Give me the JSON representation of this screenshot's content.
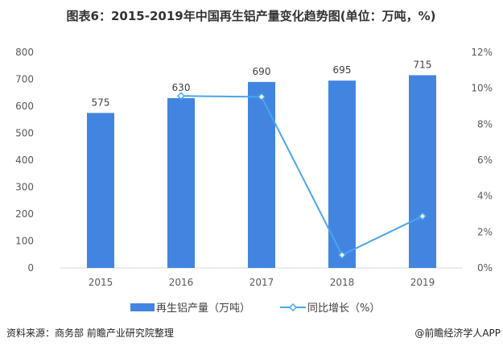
{
  "chart_data": {
    "type": "bar+line",
    "title": "图表6：2015-2019年中国再生铝产量变化趋势图(单位：万吨，%)",
    "categories": [
      "2015",
      "2016",
      "2017",
      "2018",
      "2019"
    ],
    "series": [
      {
        "name": "再生铝产量（万吨）",
        "type": "bar",
        "axis": "left",
        "values": [
          575,
          630,
          690,
          695,
          715
        ],
        "color": "#4285e0"
      },
      {
        "name": "同比增长（%）",
        "type": "line",
        "axis": "right",
        "values": [
          null,
          9.57,
          9.52,
          0.72,
          2.88
        ],
        "color": "#4aa6ec"
      }
    ],
    "y_left": {
      "range": [
        0,
        800
      ],
      "ticks": [
        "0",
        "100",
        "200",
        "300",
        "400",
        "500",
        "600",
        "700",
        "800"
      ]
    },
    "y_right": {
      "range": [
        0,
        12
      ],
      "ticks": [
        "0%",
        "2%",
        "4%",
        "6%",
        "8%",
        "10%",
        "12%"
      ]
    },
    "grid": false,
    "legend": "bottom"
  },
  "footer": {
    "source": "资料来源：商务部 前瞻产业研究院整理",
    "brand": "@前瞻经济学人APP"
  }
}
